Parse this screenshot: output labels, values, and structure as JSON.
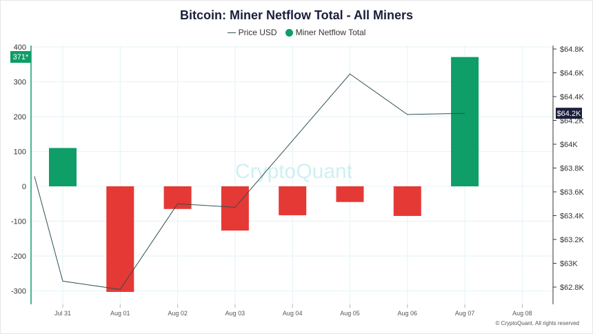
{
  "chart_data": {
    "type": "bar",
    "title": "Bitcoin: Miner Netflow Total - All Miners",
    "categories": [
      "Jul 31",
      "Aug 01",
      "Aug 02",
      "Aug 03",
      "Aug 04",
      "Aug 05",
      "Aug 06",
      "Aug 07",
      "Aug 08"
    ],
    "series": [
      {
        "name": "Miner Netflow Total",
        "type": "bar",
        "axis": "left",
        "values": [
          110,
          -303,
          -65,
          -127,
          -83,
          -45,
          -85,
          371,
          null
        ]
      },
      {
        "name": "Price USD",
        "type": "line",
        "axis": "right",
        "points": [
          {
            "x": "Jul 30",
            "y": 63730
          },
          {
            "x": "Jul 31",
            "y": 62850
          },
          {
            "x": "Aug 01",
            "y": 62780
          },
          {
            "x": "Aug 02",
            "y": 63500
          },
          {
            "x": "Aug 03",
            "y": 63470
          },
          {
            "x": "Aug 05",
            "y": 64590
          },
          {
            "x": "Aug 06",
            "y": 64250
          },
          {
            "x": "Aug 07",
            "y": 64260
          }
        ]
      }
    ],
    "left_axis": {
      "ylim": [
        -320,
        400
      ],
      "ticks": [
        400,
        300,
        200,
        100,
        0,
        -100,
        -200,
        -300
      ]
    },
    "right_axis": {
      "ylim": [
        62680,
        64830
      ],
      "ticks": [
        64800,
        64600,
        64400,
        64200,
        64000,
        63800,
        63600,
        63400,
        63200,
        63000,
        62800
      ],
      "tick_labels": [
        "$64.8K",
        "$64.6K",
        "$64.4K",
        "$64.2K",
        "$64K",
        "$63.8K",
        "$63.6K",
        "$63.4K",
        "$63.2K",
        "$63K",
        "$62.8K"
      ]
    },
    "current_left_label": "371*",
    "current_right_label": "$64.2K",
    "legend": [
      "Price USD",
      "Miner Netflow Total"
    ],
    "colors": {
      "positive": "#0f9d68",
      "negative": "#e53935",
      "line": "#2f4f4f",
      "grid": "#e3f3f6",
      "axis_bg": "#0f9d68",
      "price_label_bg": "#1b1f3b"
    },
    "grid": true,
    "legend_position": "top-center"
  },
  "watermark": "CryptoQuant",
  "copyright": "© CryptoQuant. All rights reserved"
}
